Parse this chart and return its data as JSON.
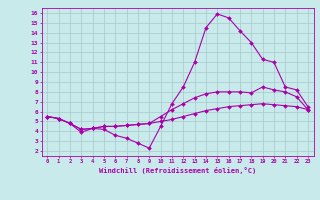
{
  "background_color": "#c8eaea",
  "grid_color": "#a8c8c8",
  "line_color": "#aa00aa",
  "xlabel": "Windchill (Refroidissement éolien,°C)",
  "xlim": [
    -0.5,
    23.5
  ],
  "ylim": [
    1.5,
    16.5
  ],
  "xticks": [
    0,
    1,
    2,
    3,
    4,
    5,
    6,
    7,
    8,
    9,
    10,
    11,
    12,
    13,
    14,
    15,
    16,
    17,
    18,
    19,
    20,
    21,
    22,
    23
  ],
  "yticks": [
    2,
    3,
    4,
    5,
    6,
    7,
    8,
    9,
    10,
    11,
    12,
    13,
    14,
    15,
    16
  ],
  "line1_x": [
    0,
    1,
    2,
    3,
    4,
    5,
    6,
    7,
    8,
    9,
    10,
    11,
    12,
    13,
    14,
    15,
    16,
    17,
    18,
    19,
    20,
    21,
    22,
    23
  ],
  "line1_y": [
    5.5,
    5.3,
    4.8,
    3.9,
    4.3,
    4.2,
    3.6,
    3.3,
    2.8,
    2.3,
    4.5,
    6.8,
    8.5,
    11.0,
    14.5,
    15.9,
    15.5,
    14.2,
    13.0,
    11.3,
    11.0,
    8.5,
    8.2,
    6.5
  ],
  "line2_x": [
    0,
    1,
    2,
    3,
    4,
    5,
    6,
    7,
    8,
    9,
    10,
    11,
    12,
    13,
    14,
    15,
    16,
    17,
    18,
    19,
    20,
    21,
    22,
    23
  ],
  "line2_y": [
    5.5,
    5.3,
    4.8,
    4.2,
    4.3,
    4.5,
    4.5,
    4.6,
    4.7,
    4.8,
    5.5,
    6.2,
    6.8,
    7.4,
    7.8,
    8.0,
    8.0,
    8.0,
    7.9,
    8.5,
    8.2,
    8.0,
    7.5,
    6.2
  ],
  "line3_x": [
    0,
    1,
    2,
    3,
    4,
    5,
    6,
    7,
    8,
    9,
    10,
    11,
    12,
    13,
    14,
    15,
    16,
    17,
    18,
    19,
    20,
    21,
    22,
    23
  ],
  "line3_y": [
    5.5,
    5.3,
    4.8,
    4.2,
    4.3,
    4.5,
    4.5,
    4.6,
    4.7,
    4.8,
    5.0,
    5.2,
    5.5,
    5.8,
    6.1,
    6.3,
    6.5,
    6.6,
    6.7,
    6.8,
    6.7,
    6.6,
    6.5,
    6.2
  ],
  "marker": "D",
  "markersize": 2.0,
  "linewidth": 0.8,
  "tick_fontsize": 4.0,
  "xlabel_fontsize": 5.0
}
